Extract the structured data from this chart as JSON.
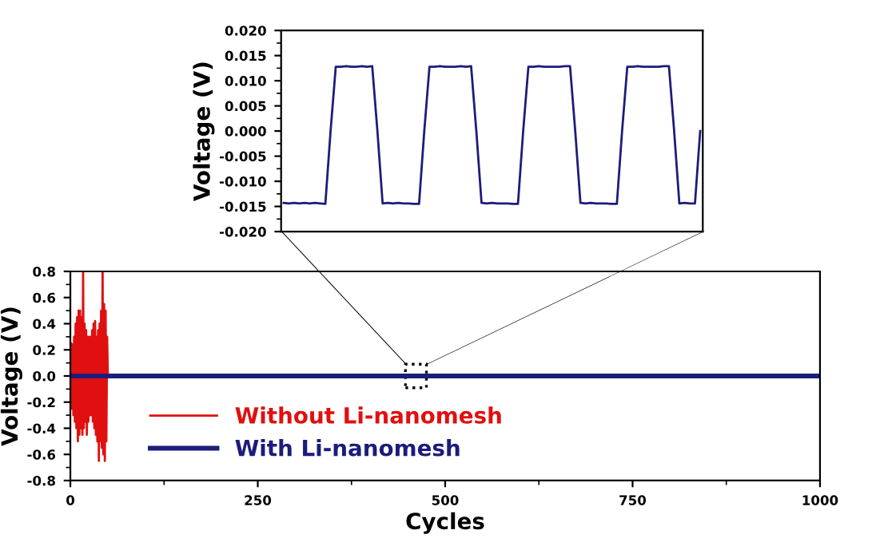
{
  "chart_data": [
    {
      "type": "line",
      "ylabel": "Voltage (V)",
      "categories": [
        null,
        null,
        null,
        null,
        null,
        null,
        null,
        null,
        null,
        null,
        null,
        null,
        null,
        null,
        null,
        null,
        null,
        null,
        null,
        null,
        null,
        null,
        null,
        null,
        null,
        null,
        null,
        null,
        null,
        null,
        null,
        null,
        null,
        null,
        null,
        null,
        null,
        null,
        null,
        null,
        null,
        null,
        null,
        null,
        null,
        null,
        null,
        null,
        null,
        null,
        null,
        null,
        null,
        null,
        null,
        null,
        null,
        null,
        null,
        null,
        null,
        null,
        null,
        null,
        null,
        null,
        null,
        null,
        null,
        null,
        null,
        null,
        null,
        null,
        null,
        null,
        null,
        null,
        null,
        null,
        null
      ],
      "series": [
        {
          "color": "#1c1c7c",
          "values": [
            -0.0143,
            -0.0144,
            -0.0143,
            -0.0144,
            -0.0143,
            -0.0144,
            -0.0143,
            -0.0144,
            -0.0145,
            0.0,
            0.0128,
            0.0128,
            0.0129,
            0.0128,
            0.0128,
            0.0129,
            0.0128,
            0.0129,
            0.0,
            -0.0144,
            -0.0143,
            -0.0144,
            -0.0143,
            -0.0144,
            -0.0144,
            -0.0145,
            -0.0145,
            0.0,
            0.0128,
            0.0128,
            0.0129,
            0.0128,
            0.0128,
            0.0128,
            0.0129,
            0.0128,
            0.0129,
            0.0,
            -0.0143,
            -0.0144,
            -0.0143,
            -0.0144,
            -0.0144,
            -0.0144,
            -0.0145,
            -0.0145,
            0.0,
            0.0128,
            0.0128,
            0.0129,
            0.0128,
            0.0128,
            0.0128,
            0.0128,
            0.0129,
            0.0129,
            0.0,
            -0.0143,
            -0.0144,
            -0.0143,
            -0.0144,
            -0.0144,
            -0.0144,
            -0.0145,
            -0.0145,
            0.0,
            0.0128,
            0.0128,
            0.0129,
            0.0128,
            0.0128,
            0.0128,
            0.0128,
            0.0129,
            0.0129,
            0.0,
            -0.0144,
            -0.0143,
            -0.0144,
            -0.0144,
            0.0
          ]
        }
      ],
      "ylim": [
        -0.02,
        0.02
      ],
      "yticks": [
        {
          "value": -0.02,
          "label": "-0.020"
        },
        {
          "value": -0.015,
          "label": "-0.015"
        },
        {
          "value": -0.01,
          "label": "-0.010"
        },
        {
          "value": -0.005,
          "label": "-0.005"
        },
        {
          "value": 0.0,
          "label": "0.000"
        },
        {
          "value": 0.005,
          "label": "0.005"
        },
        {
          "value": 0.01,
          "label": "0.010"
        },
        {
          "value": 0.015,
          "label": "0.015"
        },
        {
          "value": 0.02,
          "label": "0.020"
        }
      ],
      "tick_labels": "y",
      "legend": false,
      "grid": false
    },
    {
      "type": "line",
      "xlabel": "Cycles",
      "ylabel": "Voltage (V)",
      "series": [
        {
          "name": "Without Li-nanomesh",
          "color": "#e01010",
          "x": [
            0,
            1,
            2,
            3,
            4,
            5,
            6,
            7,
            8,
            9,
            10,
            11,
            12,
            13,
            14,
            15,
            16,
            17,
            18,
            19,
            20,
            21,
            22,
            23,
            24,
            25,
            26,
            27,
            28,
            29,
            30,
            31,
            32,
            33,
            34,
            35,
            36,
            37,
            38,
            39,
            40,
            41,
            42,
            43,
            44,
            45,
            46,
            47,
            48,
            49,
            50
          ],
          "values": [
            0,
            0.25,
            -0.25,
            0.24,
            -0.3,
            0.3,
            -0.35,
            0.4,
            -0.4,
            0.45,
            -0.5,
            0.5,
            -0.45,
            0.5,
            -0.4,
            0.45,
            -0.45,
            0.8,
            -0.4,
            0.4,
            -0.35,
            0.35,
            -0.45,
            0.3,
            -0.35,
            0.3,
            -0.3,
            0.3,
            -0.3,
            0.35,
            -0.35,
            0.4,
            -0.4,
            0.42,
            -0.45,
            0.3,
            -0.5,
            0.35,
            -0.65,
            0.4,
            -0.5,
            0.5,
            -0.55,
            0.8,
            -0.6,
            0.55,
            -0.65,
            0.5,
            -0.5,
            0.3,
            0
          ]
        },
        {
          "name": "With Li-nanomesh",
          "color": "#1c1c7c",
          "x": [
            0,
            1000
          ],
          "values": [
            0,
            0
          ]
        }
      ],
      "xlim": [
        0,
        1000
      ],
      "xticks": [
        0,
        250,
        500,
        750,
        1000
      ],
      "ylim": [
        -0.8,
        0.8
      ],
      "yticks": [
        -0.8,
        -0.6,
        -0.4,
        -0.2,
        {
          "value": 0.0,
          "label": "0.0"
        },
        0.2,
        0.4,
        0.6,
        0.8
      ],
      "legend": "bottom left",
      "grid": false
    }
  ]
}
